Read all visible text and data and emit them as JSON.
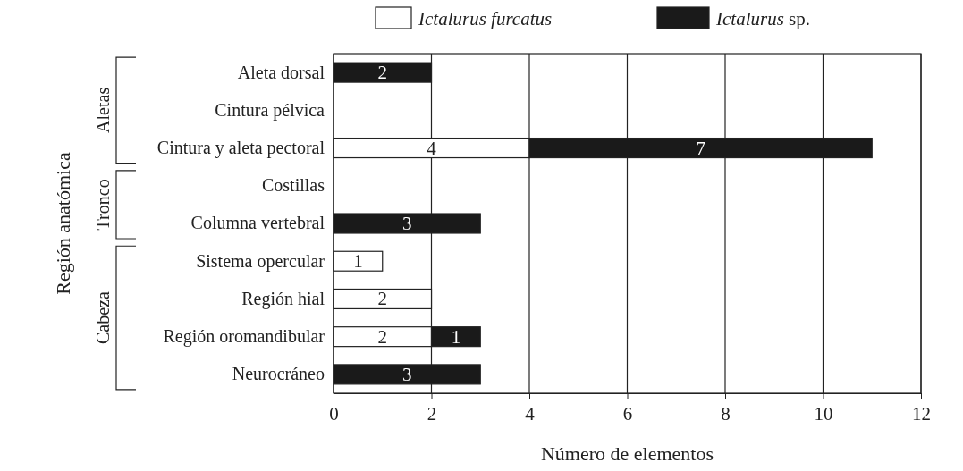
{
  "chart_data": {
    "type": "bar",
    "orientation": "horizontal",
    "stacked": true,
    "categories": [
      "Aleta dorsal",
      "Cintura pélvica",
      "Cintura y aleta pectoral",
      "Costillas",
      "Columna vertebral",
      "Sistema opercular",
      "Región hial",
      "Región oromandibular",
      "Neurocráneo"
    ],
    "series": [
      {
        "name": "Ictalurus furcatus",
        "color": "#ffffff",
        "values": [
          null,
          null,
          4,
          null,
          null,
          1,
          2,
          2,
          null
        ]
      },
      {
        "name": "Ictalurus sp.",
        "color": "#1a1a1a",
        "values": [
          2,
          null,
          7,
          null,
          3,
          null,
          null,
          1,
          3
        ]
      }
    ],
    "xlim": [
      0,
      12
    ],
    "xticks": [
      0,
      2,
      4,
      6,
      8,
      10,
      12
    ],
    "xlabel": "Número de elementos",
    "ylabel": "Región anatómica",
    "grid": "x",
    "legend": "top",
    "data_labels": true,
    "annotations": [
      "Aletas",
      "Tronco",
      "Cabeza"
    ]
  }
}
